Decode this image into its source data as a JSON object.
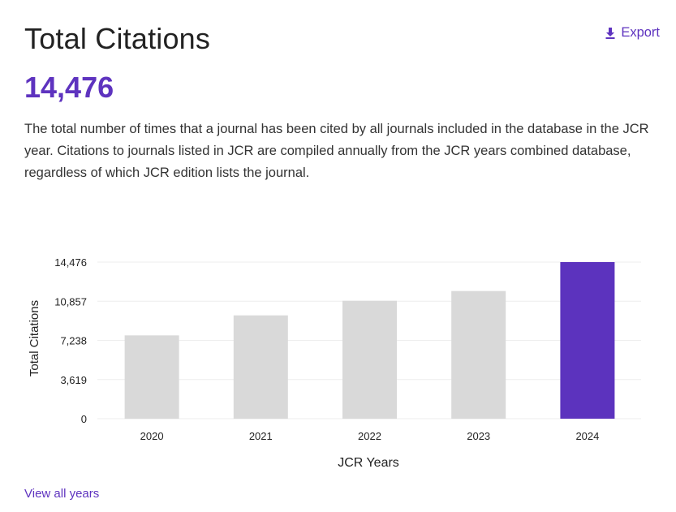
{
  "header": {
    "title": "Total Citations",
    "export_label": "Export",
    "export_icon": "download-icon"
  },
  "summary": {
    "value": "14,476",
    "description": "The total number of times that a journal has been cited by all journals included in the database in the JCR year. Citations to journals listed in JCR are compiled annually from the JCR years combined database, regardless of which JCR edition lists the journal."
  },
  "footer": {
    "view_all_label": "View all years"
  },
  "colors": {
    "accent": "#5e33bf",
    "bar_default": "#d9d9d9",
    "bar_highlight": "#5c33be"
  },
  "chart_data": {
    "type": "bar",
    "categories": [
      "2020",
      "2021",
      "2022",
      "2023",
      "2024"
    ],
    "values": [
      7700,
      9550,
      10900,
      11800,
      14476
    ],
    "highlight_index": 4,
    "xlabel": "JCR Years",
    "ylabel": "Total Citations",
    "ylim": [
      0,
      14476
    ],
    "y_ticks": [
      0,
      3619,
      7238,
      10857,
      14476
    ],
    "y_tick_labels": [
      "0",
      "3,619",
      "7,238",
      "10,857",
      "14,476"
    ],
    "grid": true,
    "legend": "none"
  }
}
